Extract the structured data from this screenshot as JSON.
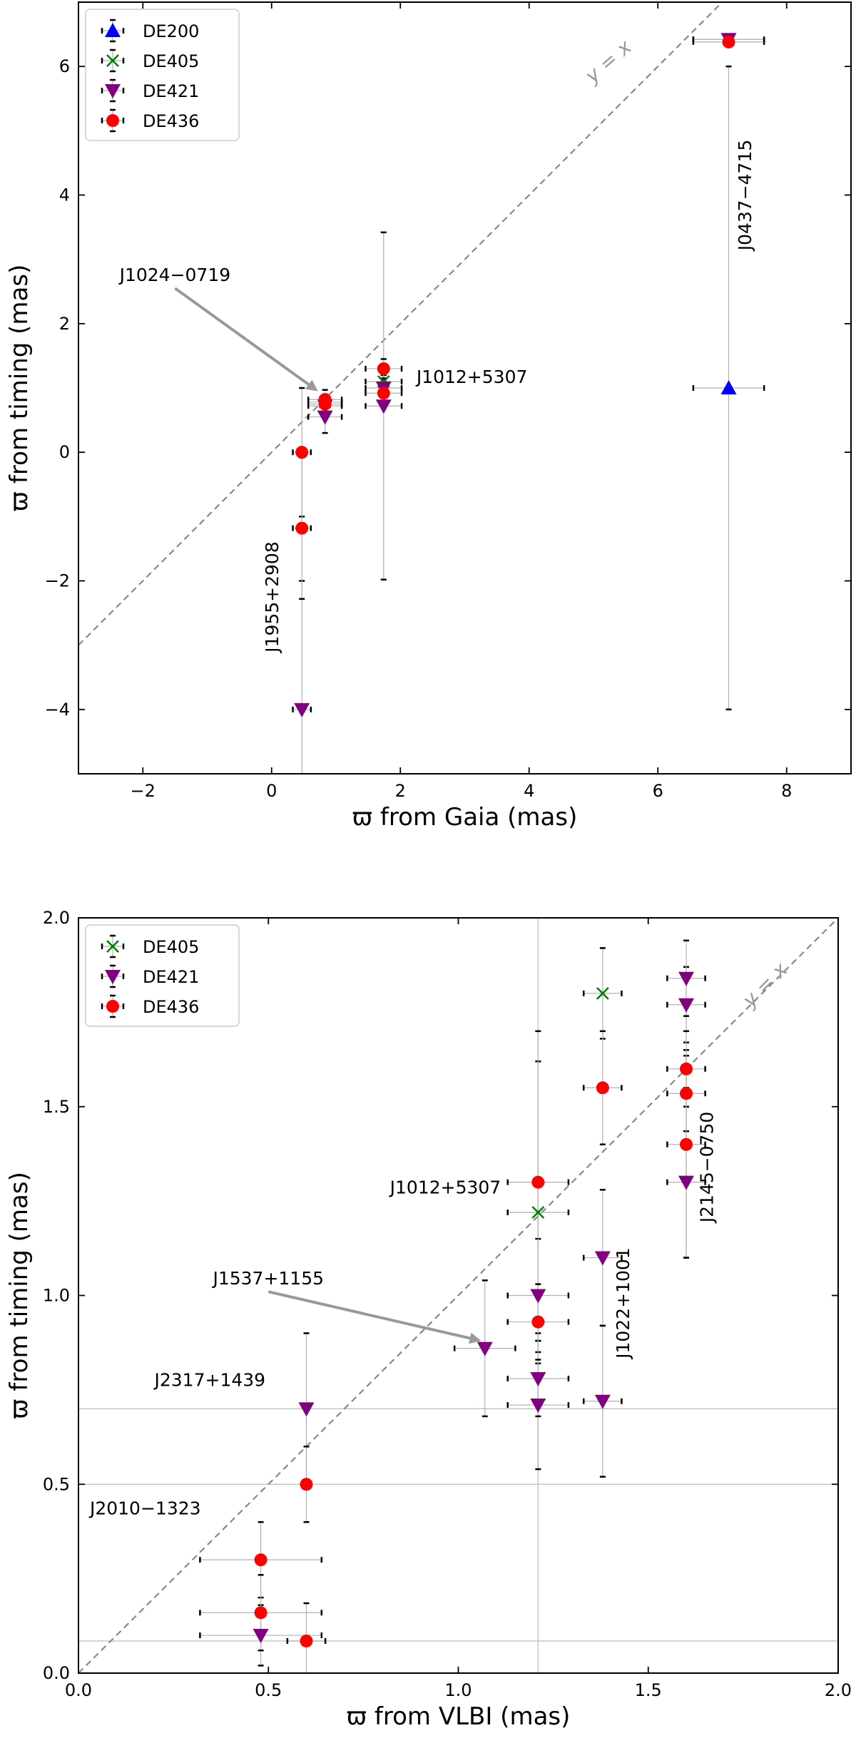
{
  "chart_data": [
    {
      "type": "scatter",
      "xlabel": "ϖ from Gaia (mas)",
      "ylabel": "ϖ from timing (mas)",
      "xlim": [
        -3,
        9
      ],
      "ylim": [
        -5,
        7
      ],
      "xticks": [
        -2,
        0,
        2,
        4,
        6,
        8
      ],
      "yticks": [
        -4,
        -2,
        0,
        2,
        4,
        6
      ],
      "identity_label": "y = x",
      "legend": {
        "position": "top-left",
        "entries": [
          "DE200",
          "DE405",
          "DE421",
          "DE436"
        ]
      },
      "series": [
        {
          "name": "DE200",
          "marker": "triangle-up",
          "color": "#0000ff",
          "points": [
            {
              "x": 7.1,
              "xerr": 0.55,
              "y": 1.0,
              "yerr": 5.0
            }
          ]
        },
        {
          "name": "DE405",
          "marker": "x",
          "color": "#008000",
          "points": [
            {
              "x": 1.74,
              "xerr": 0.28,
              "y": 1.1,
              "yerr": 0.1
            },
            {
              "x": 0.83,
              "xerr": 0.26,
              "y": 0.78,
              "yerr": 0.1
            },
            {
              "x": 7.1,
              "xerr": 0.55,
              "y": 6.42,
              "yerr": 0.05
            }
          ]
        },
        {
          "name": "DE421",
          "marker": "triangle-down",
          "color": "#800080",
          "points": [
            {
              "x": 0.47,
              "xerr": 0.14,
              "y": -4.0,
              "yerr": 2.0
            },
            {
              "x": 0.83,
              "xerr": 0.26,
              "y": 0.55,
              "yerr": 0.25
            },
            {
              "x": 0.83,
              "xerr": 0.26,
              "y": 0.72,
              "yerr": 0.15
            },
            {
              "x": 1.74,
              "xerr": 0.28,
              "y": 0.72,
              "yerr": 2.7
            },
            {
              "x": 1.74,
              "xerr": 0.28,
              "y": 1.0,
              "yerr": 0.2
            },
            {
              "x": 7.1,
              "xerr": 0.55,
              "y": 6.42,
              "yerr": 0.05
            }
          ]
        },
        {
          "name": "DE436",
          "marker": "circle",
          "color": "#ff0000",
          "points": [
            {
              "x": 0.47,
              "xerr": 0.14,
              "y": 0.0,
              "yerr": 1.0
            },
            {
              "x": 0.47,
              "xerr": 0.14,
              "y": -1.18,
              "yerr": 1.1
            },
            {
              "x": 0.83,
              "xerr": 0.26,
              "y": 0.75,
              "yerr": 0.15
            },
            {
              "x": 0.83,
              "xerr": 0.26,
              "y": 0.82,
              "yerr": 0.15
            },
            {
              "x": 1.74,
              "xerr": 0.28,
              "y": 0.92,
              "yerr": 0.2
            },
            {
              "x": 1.74,
              "xerr": 0.28,
              "y": 1.3,
              "yerr": 0.15
            },
            {
              "x": 7.1,
              "xerr": 0.55,
              "y": 6.38,
              "yerr": 0.05
            }
          ]
        }
      ],
      "annotations": [
        {
          "text": "J1024−0719",
          "x": -1.5,
          "y": 2.55,
          "arrow_to": [
            0.72,
            0.95
          ]
        },
        {
          "text": "J1012+5307",
          "x": 2.25,
          "y": 1.08
        },
        {
          "text": "J1955+2908",
          "x": 0.1,
          "y": -2.25,
          "rotation": 90
        },
        {
          "text": "J0437−4715",
          "x": 7.45,
          "y": 4.0,
          "rotation": 90
        }
      ]
    },
    {
      "type": "scatter",
      "xlabel": "ϖ from VLBI (mas)",
      "ylabel": "ϖ from timing (mas)",
      "xlim": [
        0.0,
        2.0
      ],
      "ylim": [
        0.0,
        2.0
      ],
      "xticks": [
        0.0,
        0.5,
        1.0,
        1.5,
        2.0
      ],
      "yticks": [
        0.0,
        0.5,
        1.0,
        1.5,
        2.0
      ],
      "identity_label": "y = x",
      "reference_lines": {
        "horizontal": [
          0.7,
          0.5,
          0.085
        ],
        "vertical": [
          1.21
        ]
      },
      "legend": {
        "position": "top-left",
        "entries": [
          "DE405",
          "DE421",
          "DE436"
        ]
      },
      "series": [
        {
          "name": "DE405",
          "marker": "x",
          "color": "#008000",
          "points": [
            {
              "x": 1.21,
              "xerr": 0.08,
              "y": 1.22,
              "yerr": 0.4
            },
            {
              "x": 1.38,
              "xerr": 0.05,
              "y": 1.8,
              "yerr": 0.12
            }
          ]
        },
        {
          "name": "DE421",
          "marker": "triangle-down",
          "color": "#800080",
          "points": [
            {
              "x": 0.48,
              "xerr": 0.16,
              "y": 0.1,
              "yerr": 0.08
            },
            {
              "x": 0.6,
              "xerr": 0.0,
              "y": 0.7,
              "yerr": 0.2
            },
            {
              "x": 1.07,
              "xerr": 0.08,
              "y": 0.86,
              "yerr": 0.18
            },
            {
              "x": 1.21,
              "xerr": 0.08,
              "y": 0.71,
              "yerr": 0.17
            },
            {
              "x": 1.21,
              "xerr": 0.08,
              "y": 0.78,
              "yerr": 0.1
            },
            {
              "x": 1.21,
              "xerr": 0.08,
              "y": 1.0,
              "yerr": 0.15
            },
            {
              "x": 1.38,
              "xerr": 0.05,
              "y": 0.72,
              "yerr": 0.2
            },
            {
              "x": 1.38,
              "xerr": 0.05,
              "y": 1.1,
              "yerr": 0.18
            },
            {
              "x": 1.6,
              "xerr": 0.05,
              "y": 1.3,
              "yerr": 0.2
            },
            {
              "x": 1.6,
              "xerr": 0.05,
              "y": 1.77,
              "yerr": 0.1
            },
            {
              "x": 1.6,
              "xerr": 0.05,
              "y": 1.84,
              "yerr": 0.1
            }
          ]
        },
        {
          "name": "DE436",
          "marker": "circle",
          "color": "#ff0000",
          "points": [
            {
              "x": 0.48,
              "xerr": 0.16,
              "y": 0.3,
              "yerr": 0.1
            },
            {
              "x": 0.48,
              "xerr": 0.16,
              "y": 0.16,
              "yerr": 0.1
            },
            {
              "x": 0.6,
              "xerr": 0.05,
              "y": 0.085,
              "yerr": 0.1
            },
            {
              "x": 0.6,
              "xerr": 0.0,
              "y": 0.5,
              "yerr": 0.1
            },
            {
              "x": 1.21,
              "xerr": 0.08,
              "y": 1.3,
              "yerr": 0.4
            },
            {
              "x": 1.21,
              "xerr": 0.08,
              "y": 0.93,
              "yerr": 0.1
            },
            {
              "x": 1.38,
              "xerr": 0.05,
              "y": 1.55,
              "yerr": 0.15
            },
            {
              "x": 1.6,
              "xerr": 0.05,
              "y": 1.6,
              "yerr": 0.05
            },
            {
              "x": 1.6,
              "xerr": 0.05,
              "y": 1.535,
              "yerr": 0.1
            },
            {
              "x": 1.6,
              "xerr": 0.05,
              "y": 1.4,
              "yerr": 0.3
            }
          ]
        }
      ],
      "annotations": [
        {
          "text": "J1012+5307",
          "x": 0.82,
          "y": 1.27
        },
        {
          "text": "J1537+1155",
          "x": 0.5,
          "y": 1.01,
          "arrow_to": [
            1.06,
            0.88
          ]
        },
        {
          "text": "J2317+1439",
          "x": 0.2,
          "y": 0.76
        },
        {
          "text": "J2010−1323",
          "x": 0.03,
          "y": 0.42
        },
        {
          "text": "J1022+1001",
          "x": 1.45,
          "y": 0.98,
          "rotation": 90
        },
        {
          "text": "J2145−0750",
          "x": 1.67,
          "y": 1.34,
          "rotation": 90
        }
      ]
    }
  ]
}
